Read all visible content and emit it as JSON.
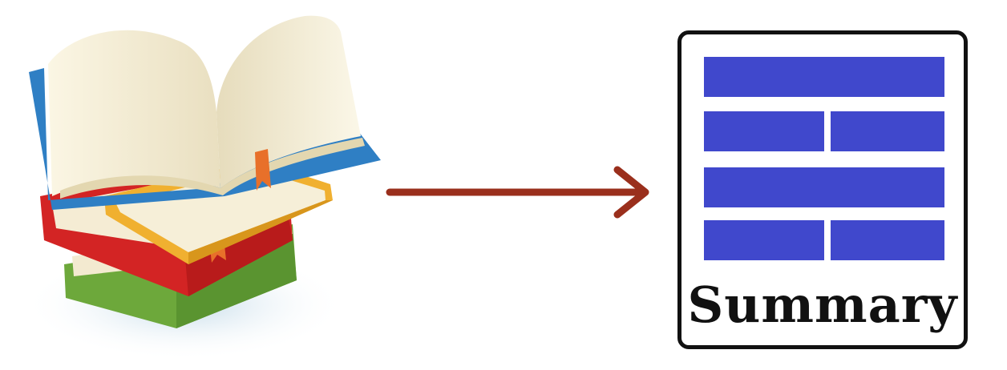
{
  "summary": {
    "label": "Summary"
  },
  "colors": {
    "arrow": "#9a2f1c",
    "summary_bars": "#4048cc",
    "card_border": "#111111"
  },
  "icons": {
    "books": "stack-of-books-icon",
    "arrow": "right-arrow-icon",
    "summary": "summary-document-icon"
  }
}
